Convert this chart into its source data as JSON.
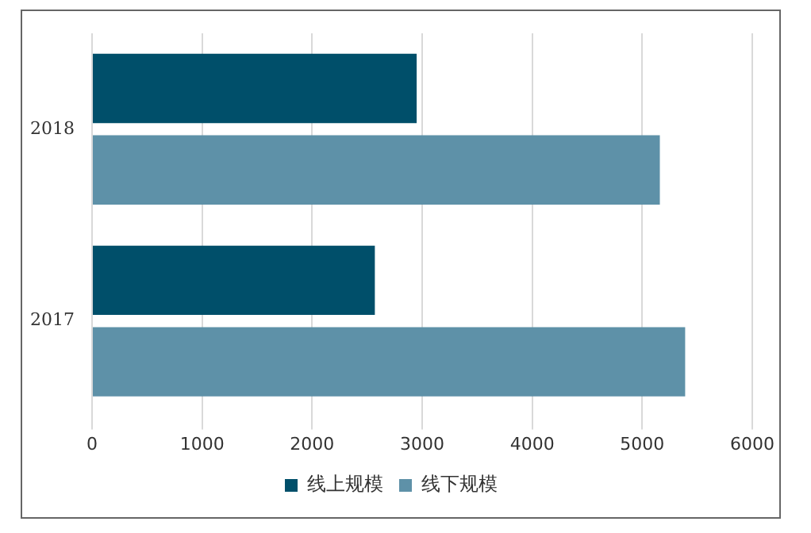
{
  "chart_data": {
    "type": "bar",
    "orientation": "horizontal",
    "categories": [
      "2018",
      "2017"
    ],
    "series": [
      {
        "name": "线上规模",
        "color": "#004f6a",
        "values": [
          2950,
          2570
        ]
      },
      {
        "name": "线下规模",
        "color": "#5e91a8",
        "values": [
          5160,
          5390
        ]
      }
    ],
    "xlim": [
      0,
      6000
    ],
    "xticks": [
      0,
      1000,
      2000,
      3000,
      4000,
      5000,
      6000
    ],
    "grid": "x",
    "legend": "bottom"
  }
}
